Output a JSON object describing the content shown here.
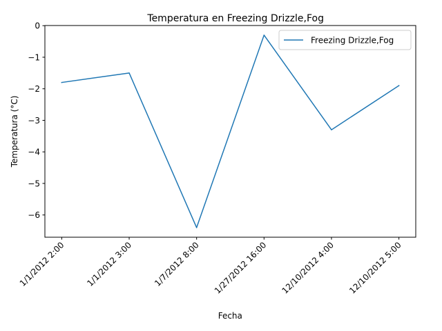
{
  "chart_data": {
    "type": "line",
    "title": "Temperatura en Freezing Drizzle,Fog",
    "xlabel": "Fecha",
    "ylabel": "Temperatura (°C)",
    "categories": [
      "1/1/2012 2:00",
      "1/1/2012 3:00",
      "1/7/2012 8:00",
      "1/27/2012 16:00",
      "12/10/2012 4:00",
      "12/10/2012 5:00"
    ],
    "series": [
      {
        "name": "Freezing Drizzle,Fog",
        "values": [
          -1.8,
          -1.5,
          -6.4,
          -0.3,
          -3.3,
          -1.9
        ],
        "color": "#1f77b4"
      }
    ],
    "ylim": [
      -6.705,
      0.005
    ],
    "yticks": [
      0,
      -1,
      -2,
      -3,
      -4,
      -5,
      -6
    ],
    "ytick_labels": [
      "0",
      "−1",
      "−2",
      "−3",
      "−4",
      "−5",
      "−6"
    ],
    "grid": false,
    "legend_position": "top-right"
  }
}
